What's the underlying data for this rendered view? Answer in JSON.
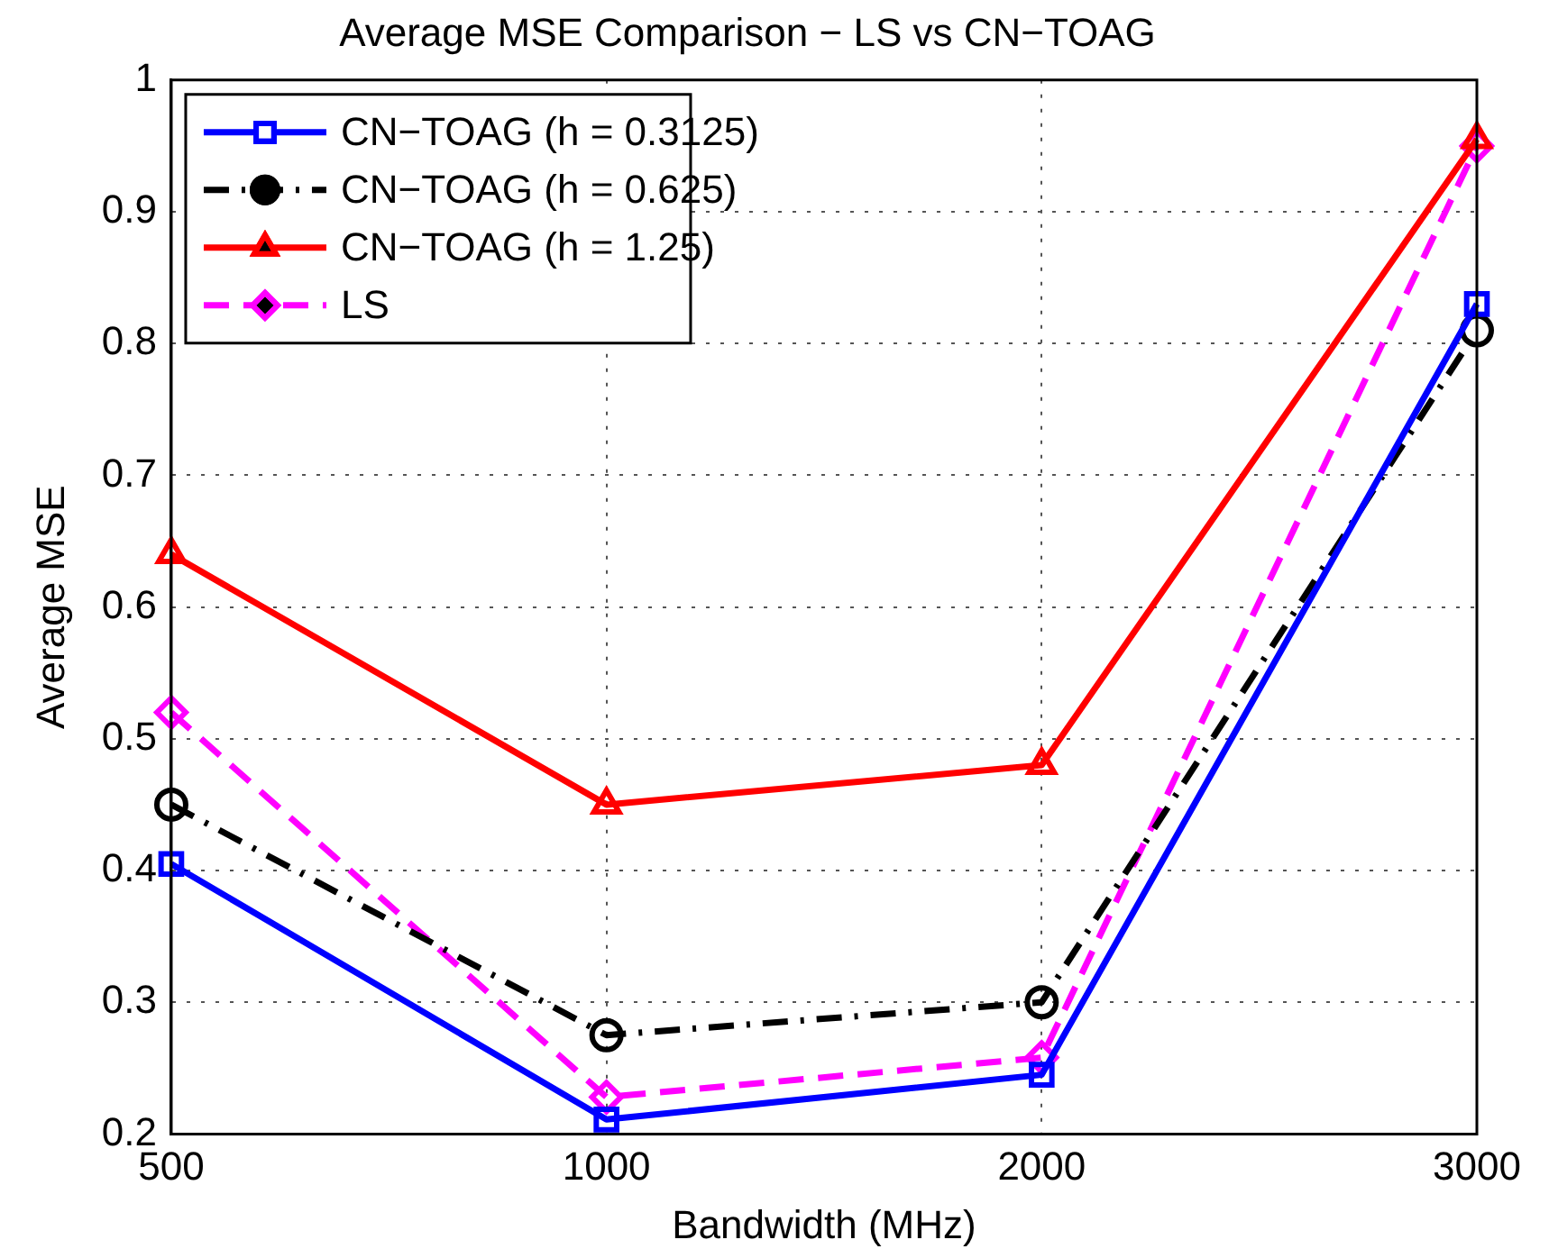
{
  "chart_data": {
    "type": "line",
    "title": "Average MSE Comparison − LS vs CN−TOAG",
    "xlabel": "Bandwidth (MHz)",
    "ylabel": "Average MSE",
    "categories": [
      "500",
      "1000",
      "2000",
      "3000"
    ],
    "ylim": [
      0.2,
      1
    ],
    "yticks": [
      0.2,
      0.3,
      0.4,
      0.5,
      0.6,
      0.7,
      0.8,
      0.9,
      1
    ],
    "grid": true,
    "legend": "top left",
    "series": [
      {
        "name": "CN−TOAG (h = 0.3125)",
        "color": "#0000ff",
        "values": [
          0.405,
          0.211,
          0.245,
          0.83
        ],
        "marker": "square",
        "line_style": "solid"
      },
      {
        "name": "CN−TOAG (h = 0.625)",
        "color": "#000000",
        "values": [
          0.45,
          0.275,
          0.3,
          0.81
        ],
        "marker": "circle",
        "line_style": "dashdot"
      },
      {
        "name": "CN−TOAG (h = 1.25)",
        "color": "#ff0000",
        "values": [
          0.64,
          0.45,
          0.48,
          0.955
        ],
        "marker": "triangle",
        "line_style": "solid"
      },
      {
        "name": "LS",
        "color": "#ff00ff",
        "values": [
          0.52,
          0.228,
          0.258,
          0.95
        ],
        "marker": "diamond",
        "line_style": "dashed"
      }
    ]
  }
}
